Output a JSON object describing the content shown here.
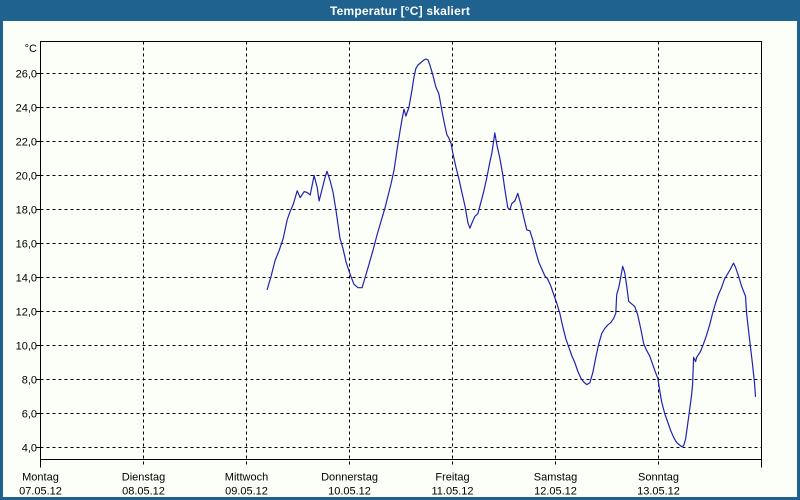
{
  "title": "Temperatur [°C] skaliert",
  "colors": {
    "titlebar": "#1F618F",
    "frame": "#1F618F",
    "background": "#FCFFF7",
    "grid": "#000000",
    "axis": "#000000",
    "line": "#2222B2",
    "title_text": "#FFFFFF"
  },
  "chart_data": {
    "type": "line",
    "title": "Temperatur [°C] skaliert",
    "xlabel": "",
    "ylabel": "°C",
    "y_unit_label": "°C",
    "ylim": [
      3.3,
      27.9
    ],
    "xlim_days": [
      0,
      7
    ],
    "grid": "dashed",
    "legend": "none",
    "y_ticks": [
      {
        "value": 26,
        "label": "26,0"
      },
      {
        "value": 24,
        "label": "24,0"
      },
      {
        "value": 22,
        "label": "22,0"
      },
      {
        "value": 20,
        "label": "20,0"
      },
      {
        "value": 18,
        "label": "18,0"
      },
      {
        "value": 16,
        "label": "16,0"
      },
      {
        "value": 14,
        "label": "14,0"
      },
      {
        "value": 12,
        "label": "12,0"
      },
      {
        "value": 10,
        "label": "10,0"
      },
      {
        "value": 8,
        "label": "8,0"
      },
      {
        "value": 6,
        "label": "6,0"
      },
      {
        "value": 4,
        "label": "4,0"
      }
    ],
    "x_ticks": [
      {
        "day": 0,
        "name": "Montag",
        "date": "07.05.12"
      },
      {
        "day": 1,
        "name": "Dienstag",
        "date": "08.05.12"
      },
      {
        "day": 2,
        "name": "Mittwoch",
        "date": "09.05.12"
      },
      {
        "day": 3,
        "name": "Donnerstag",
        "date": "10.05.12"
      },
      {
        "day": 4,
        "name": "Freitag",
        "date": "11.05.12"
      },
      {
        "day": 5,
        "name": "Samstag",
        "date": "12.05.12"
      },
      {
        "day": 6,
        "name": "Sonntag",
        "date": "13.05.12"
      }
    ],
    "series": [
      {
        "name": "Temperatur [°C]",
        "color": "#2222B2",
        "points": [
          [
            2.201,
            13.3
          ],
          [
            2.24,
            14.1
          ],
          [
            2.278,
            15.0
          ],
          [
            2.317,
            15.6
          ],
          [
            2.356,
            16.3
          ],
          [
            2.395,
            17.4
          ],
          [
            2.424,
            17.9
          ],
          [
            2.453,
            18.3
          ],
          [
            2.492,
            19.1
          ],
          [
            2.521,
            18.7
          ],
          [
            2.56,
            19.05
          ],
          [
            2.589,
            19.0
          ],
          [
            2.618,
            18.85
          ],
          [
            2.656,
            20.0
          ],
          [
            2.686,
            19.3
          ],
          [
            2.705,
            18.5
          ],
          [
            2.734,
            19.2
          ],
          [
            2.763,
            19.9
          ],
          [
            2.782,
            20.25
          ],
          [
            2.812,
            19.7
          ],
          [
            2.841,
            19.0
          ],
          [
            2.87,
            17.9
          ],
          [
            2.908,
            16.3
          ],
          [
            2.937,
            15.7
          ],
          [
            2.967,
            14.9
          ],
          [
            3.005,
            14.2
          ],
          [
            3.044,
            13.6
          ],
          [
            3.083,
            13.4
          ],
          [
            3.122,
            13.4
          ],
          [
            3.151,
            14.0
          ],
          [
            3.19,
            14.8
          ],
          [
            3.228,
            15.6
          ],
          [
            3.267,
            16.5
          ],
          [
            3.306,
            17.3
          ],
          [
            3.345,
            18.1
          ],
          [
            3.374,
            18.8
          ],
          [
            3.403,
            19.5
          ],
          [
            3.432,
            20.3
          ],
          [
            3.461,
            21.5
          ],
          [
            3.49,
            22.6
          ],
          [
            3.51,
            23.3
          ],
          [
            3.529,
            23.9
          ],
          [
            3.548,
            23.5
          ],
          [
            3.577,
            24.0
          ],
          [
            3.606,
            25.0
          ],
          [
            3.626,
            25.8
          ],
          [
            3.645,
            26.3
          ],
          [
            3.665,
            26.5
          ],
          [
            3.694,
            26.65
          ],
          [
            3.723,
            26.8
          ],
          [
            3.742,
            26.85
          ],
          [
            3.762,
            26.8
          ],
          [
            3.781,
            26.5
          ],
          [
            3.81,
            25.9
          ],
          [
            3.839,
            25.2
          ],
          [
            3.868,
            24.8
          ],
          [
            3.888,
            24.1
          ],
          [
            3.907,
            23.5
          ],
          [
            3.927,
            22.9
          ],
          [
            3.946,
            22.4
          ],
          [
            3.965,
            22.2
          ],
          [
            3.985,
            21.9
          ],
          [
            4.004,
            21.3
          ],
          [
            4.033,
            20.5
          ],
          [
            4.062,
            19.8
          ],
          [
            4.091,
            19.0
          ],
          [
            4.121,
            18.2
          ],
          [
            4.15,
            17.2
          ],
          [
            4.169,
            16.9
          ],
          [
            4.188,
            17.2
          ],
          [
            4.217,
            17.6
          ],
          [
            4.246,
            17.75
          ],
          [
            4.275,
            18.4
          ],
          [
            4.305,
            19.1
          ],
          [
            4.334,
            19.9
          ],
          [
            4.363,
            20.8
          ],
          [
            4.382,
            21.3
          ],
          [
            4.411,
            22.5
          ],
          [
            4.431,
            21.8
          ],
          [
            4.46,
            21.0
          ],
          [
            4.489,
            20.0
          ],
          [
            4.508,
            19.2
          ],
          [
            4.537,
            18.1
          ],
          [
            4.557,
            18.0
          ],
          [
            4.576,
            18.35
          ],
          [
            4.605,
            18.5
          ],
          [
            4.634,
            18.95
          ],
          [
            4.663,
            18.3
          ],
          [
            4.693,
            17.5
          ],
          [
            4.721,
            16.8
          ],
          [
            4.751,
            16.75
          ],
          [
            4.78,
            16.2
          ],
          [
            4.809,
            15.5
          ],
          [
            4.838,
            14.9
          ],
          [
            4.867,
            14.5
          ],
          [
            4.896,
            14.1
          ],
          [
            4.925,
            13.9
          ],
          [
            4.954,
            13.5
          ],
          [
            4.983,
            13.0
          ],
          [
            5.012,
            12.5
          ],
          [
            5.042,
            11.9
          ],
          [
            5.071,
            11.1
          ],
          [
            5.1,
            10.4
          ],
          [
            5.129,
            9.9
          ],
          [
            5.158,
            9.4
          ],
          [
            5.187,
            9.0
          ],
          [
            5.216,
            8.5
          ],
          [
            5.245,
            8.1
          ],
          [
            5.274,
            7.85
          ],
          [
            5.303,
            7.7
          ],
          [
            5.333,
            7.8
          ],
          [
            5.362,
            8.4
          ],
          [
            5.391,
            9.3
          ],
          [
            5.42,
            10.1
          ],
          [
            5.449,
            10.7
          ],
          [
            5.478,
            11.0
          ],
          [
            5.507,
            11.2
          ],
          [
            5.536,
            11.35
          ],
          [
            5.565,
            11.6
          ],
          [
            5.585,
            11.9
          ],
          [
            5.594,
            13.0
          ],
          [
            5.614,
            13.4
          ],
          [
            5.633,
            14.0
          ],
          [
            5.652,
            14.65
          ],
          [
            5.672,
            14.3
          ],
          [
            5.691,
            13.5
          ],
          [
            5.711,
            12.6
          ],
          [
            5.74,
            12.45
          ],
          [
            5.769,
            12.3
          ],
          [
            5.798,
            11.8
          ],
          [
            5.827,
            11.0
          ],
          [
            5.856,
            10.1
          ],
          [
            5.885,
            9.7
          ],
          [
            5.914,
            9.4
          ],
          [
            5.943,
            8.9
          ],
          [
            5.972,
            8.4
          ],
          [
            5.992,
            8.1
          ],
          [
            6.011,
            7.4
          ],
          [
            6.03,
            6.7
          ],
          [
            6.06,
            6.0
          ],
          [
            6.089,
            5.5
          ],
          [
            6.118,
            5.0
          ],
          [
            6.147,
            4.6
          ],
          [
            6.176,
            4.3
          ],
          [
            6.205,
            4.15
          ],
          [
            6.224,
            4.05
          ],
          [
            6.244,
            4.1
          ],
          [
            6.263,
            4.5
          ],
          [
            6.282,
            5.3
          ],
          [
            6.302,
            6.2
          ],
          [
            6.321,
            7.1
          ],
          [
            6.331,
            7.7
          ],
          [
            6.341,
            9.3
          ],
          [
            6.36,
            9.05
          ],
          [
            6.37,
            9.3
          ],
          [
            6.408,
            9.65
          ],
          [
            6.437,
            10.1
          ],
          [
            6.466,
            10.6
          ],
          [
            6.496,
            11.2
          ],
          [
            6.525,
            11.9
          ],
          [
            6.554,
            12.5
          ],
          [
            6.583,
            13.0
          ],
          [
            6.612,
            13.4
          ],
          [
            6.641,
            13.9
          ],
          [
            6.67,
            14.2
          ],
          [
            6.699,
            14.5
          ],
          [
            6.728,
            14.85
          ],
          [
            6.748,
            14.6
          ],
          [
            6.777,
            14.1
          ],
          [
            6.806,
            13.5
          ],
          [
            6.825,
            13.2
          ],
          [
            6.845,
            12.9
          ],
          [
            6.855,
            11.9
          ],
          [
            6.874,
            10.9
          ],
          [
            6.893,
            9.9
          ],
          [
            6.913,
            8.9
          ],
          [
            6.932,
            7.8
          ],
          [
            6.942,
            7.0
          ]
        ]
      }
    ]
  }
}
